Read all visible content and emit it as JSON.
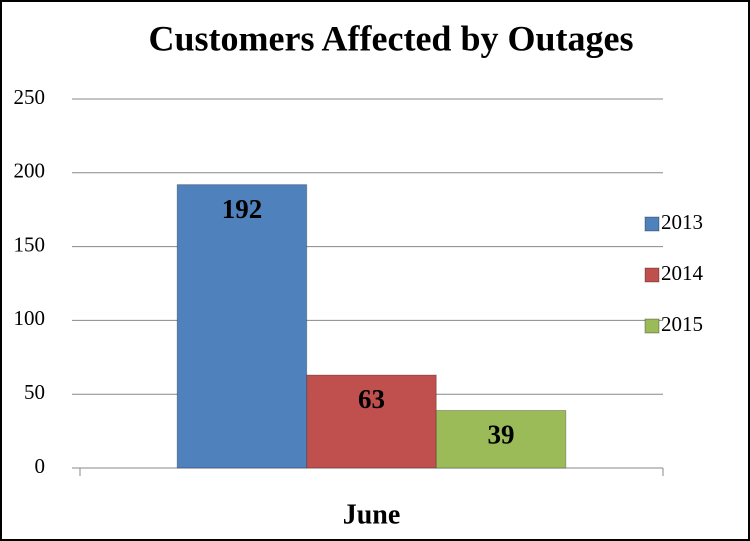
{
  "chart_data": {
    "type": "bar",
    "title": "Customers Affected by Outages",
    "categories": [
      "June"
    ],
    "series": [
      {
        "name": "2013",
        "color": "#4f81bd",
        "values": [
          192
        ]
      },
      {
        "name": "2014",
        "color": "#c0504d",
        "values": [
          63
        ]
      },
      {
        "name": "2015",
        "color": "#9bbb59",
        "values": [
          39
        ]
      }
    ],
    "ylim": [
      0,
      250
    ],
    "yticks": [
      0,
      50,
      100,
      150,
      200,
      250
    ],
    "grid": true,
    "legend": "right"
  }
}
